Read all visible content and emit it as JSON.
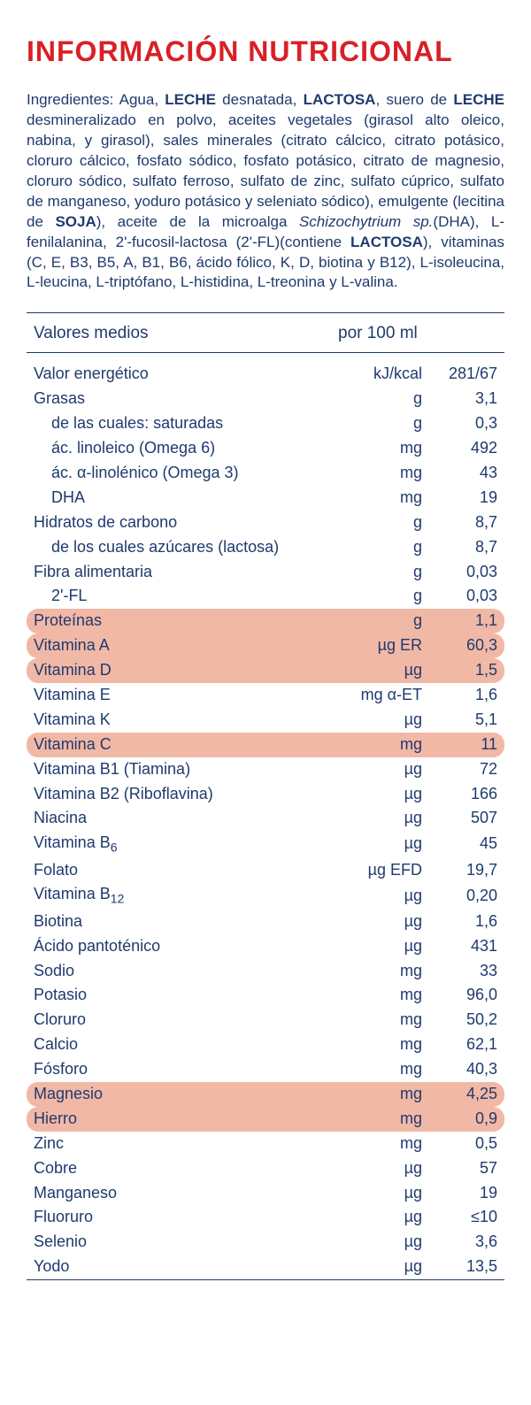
{
  "title": "INFORMACIÓN NUTRICIONAL",
  "ingredients_html": "Ingredientes: Agua, <b>LECHE</b> desnatada, <b>LACTOSA</b>, suero de <b>LECHE</b> desmineralizado en polvo, aceites vegetales (girasol alto oleico, nabina, y girasol), sales minerales (citrato cálcico, citrato potásico, cloruro cálcico, fosfato sódico, fosfato potásico, citrato de magnesio, cloruro sódico, sulfato ferroso, sulfato de zinc, sulfato cúprico, sulfato de manganeso, yoduro potásico y seleniato sódico), emulgente (lecitina de <b>SOJA</b>), aceite de la microalga <i>Schizochytrium sp.</i>(DHA), L-fenilalanina, 2'-fucosil-lactosa (2'-FL)(contiene <b>LACTOSA</b>), vitaminas (C, E, B3, B5, A, B1, B6, ácido fólico, K, D, biotina y B12), L-isoleucina, L-leucina, L-triptófano, L-histidina, L-treonina y L-valina.",
  "header": {
    "col1": "Valores medios",
    "col2": "por 100 ml"
  },
  "colors": {
    "title": "#d92027",
    "text": "#1f3a6e",
    "highlight": "#f2b8a6",
    "bg": "#ffffff"
  },
  "rows": [
    {
      "label": "Valor energético",
      "unit": "kJ/kcal",
      "value": "281/67",
      "indent": 0,
      "hl": false
    },
    {
      "label": "Grasas",
      "unit": "g",
      "value": "3,1",
      "indent": 0,
      "hl": false
    },
    {
      "label": "de las cuales: saturadas",
      "unit": "g",
      "value": "0,3",
      "indent": 1,
      "hl": false
    },
    {
      "label": "ác. linoleico (Omega 6)",
      "unit": "mg",
      "value": "492",
      "indent": 1,
      "hl": false
    },
    {
      "label": "ác. α-linolénico (Omega 3)",
      "unit": "mg",
      "value": "43",
      "indent": 1,
      "hl": false
    },
    {
      "label": "DHA",
      "unit": "mg",
      "value": "19",
      "indent": 1,
      "hl": false
    },
    {
      "label": "Hidratos de carbono",
      "unit": "g",
      "value": "8,7",
      "indent": 0,
      "hl": false
    },
    {
      "label": "de los cuales azúcares (lactosa)",
      "unit": "g",
      "value": "8,7",
      "indent": 1,
      "hl": false
    },
    {
      "label": "Fibra alimentaria",
      "unit": "g",
      "value": "0,03",
      "indent": 0,
      "hl": false
    },
    {
      "label": "2'-FL",
      "unit": "g",
      "value": "0,03",
      "indent": 1,
      "hl": false
    },
    {
      "label": "Proteínas",
      "unit": "g",
      "value": "1,1",
      "indent": 0,
      "hl": true
    },
    {
      "label": "Vitamina A",
      "unit": "µg ER",
      "value": "60,3",
      "indent": 0,
      "hl": true
    },
    {
      "label": "Vitamina D",
      "unit": "µg",
      "value": "1,5",
      "indent": 0,
      "hl": true
    },
    {
      "label": "Vitamina E",
      "unit": "mg α-ET",
      "value": "1,6",
      "indent": 0,
      "hl": false
    },
    {
      "label": "Vitamina K",
      "unit": "µg",
      "value": "5,1",
      "indent": 0,
      "hl": false
    },
    {
      "label": "Vitamina C",
      "unit": "mg",
      "value": "11",
      "indent": 0,
      "hl": true
    },
    {
      "label": "Vitamina B1 (Tiamina)",
      "unit": "µg",
      "value": "72",
      "indent": 0,
      "hl": false
    },
    {
      "label": "Vitamina B2 (Riboflavina)",
      "unit": "µg",
      "value": "166",
      "indent": 0,
      "hl": false
    },
    {
      "label": "Niacina",
      "unit": "µg",
      "value": "507",
      "indent": 0,
      "hl": false
    },
    {
      "label_html": "Vitamina B<span class='sub'>6</span>",
      "unit": "µg",
      "value": "45",
      "indent": 0,
      "hl": false
    },
    {
      "label": "Folato",
      "unit": "µg EFD",
      "value": "19,7",
      "indent": 0,
      "hl": false
    },
    {
      "label_html": "Vitamina B<span class='sub'>12</span>",
      "unit": "µg",
      "value": "0,20",
      "indent": 0,
      "hl": false
    },
    {
      "label": "Biotina",
      "unit": "µg",
      "value": "1,6",
      "indent": 0,
      "hl": false
    },
    {
      "label": "Ácido pantoténico",
      "unit": "µg",
      "value": "431",
      "indent": 0,
      "hl": false
    },
    {
      "label": "Sodio",
      "unit": "mg",
      "value": "33",
      "indent": 0,
      "hl": false
    },
    {
      "label": "Potasio",
      "unit": "mg",
      "value": "96,0",
      "indent": 0,
      "hl": false
    },
    {
      "label": "Cloruro",
      "unit": "mg",
      "value": "50,2",
      "indent": 0,
      "hl": false
    },
    {
      "label": "Calcio",
      "unit": "mg",
      "value": "62,1",
      "indent": 0,
      "hl": false
    },
    {
      "label": "Fósforo",
      "unit": "mg",
      "value": "40,3",
      "indent": 0,
      "hl": false
    },
    {
      "label": "Magnesio",
      "unit": "mg",
      "value": "4,25",
      "indent": 0,
      "hl": true
    },
    {
      "label": "Hierro",
      "unit": "mg",
      "value": "0,9",
      "indent": 0,
      "hl": true
    },
    {
      "label": "Zinc",
      "unit": "mg",
      "value": "0,5",
      "indent": 0,
      "hl": false
    },
    {
      "label": "Cobre",
      "unit": "µg",
      "value": "57",
      "indent": 0,
      "hl": false
    },
    {
      "label": "Manganeso",
      "unit": "µg",
      "value": "19",
      "indent": 0,
      "hl": false
    },
    {
      "label": "Fluoruro",
      "unit": "µg",
      "value": "≤10",
      "indent": 0,
      "hl": false
    },
    {
      "label": "Selenio",
      "unit": "µg",
      "value": "3,6",
      "indent": 0,
      "hl": false
    },
    {
      "label": "Yodo",
      "unit": "µg",
      "value": "13,5",
      "indent": 0,
      "hl": false
    }
  ]
}
